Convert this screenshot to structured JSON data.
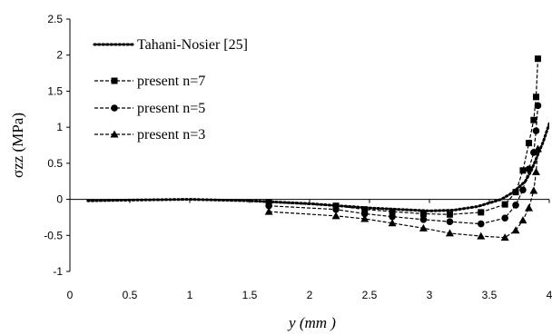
{
  "chart_data": {
    "type": "line",
    "xlabel": "y (mm )",
    "ylabel": "σzz (MPa)",
    "xlim": [
      0,
      4
    ],
    "ylim": [
      -1,
      2.5
    ],
    "xticks": [
      "0",
      "0.5",
      "1",
      "1.5",
      "2",
      "2.5",
      "3",
      "3.5",
      "4"
    ],
    "yticks": [
      "-1",
      "-0.5",
      "0",
      "0.5",
      "1",
      "1.5",
      "2",
      "2.5"
    ],
    "grid": false,
    "legend_position": "top-left",
    "series": [
      {
        "name": "Tahani-Nosier [25]",
        "style": "dotted",
        "marker": "none",
        "color": "#000000",
        "x": [
          0.15,
          0.5,
          1.0,
          1.5,
          2.0,
          2.5,
          3.0,
          3.2,
          3.4,
          3.6,
          3.7,
          3.8,
          3.85,
          3.9,
          3.95,
          4.0
        ],
        "y": [
          -0.02,
          -0.01,
          0.0,
          -0.02,
          -0.06,
          -0.12,
          -0.16,
          -0.15,
          -0.1,
          0.0,
          0.1,
          0.25,
          0.4,
          0.6,
          0.8,
          1.05
        ]
      },
      {
        "name": "present n=7",
        "style": "dashed",
        "marker": "square",
        "color": "#000000",
        "x": [
          1.66,
          2.22,
          2.46,
          2.69,
          2.95,
          3.17,
          3.43,
          3.63,
          3.72,
          3.78,
          3.83,
          3.87,
          3.89,
          3.905
        ],
        "y": [
          -0.04,
          -0.09,
          -0.14,
          -0.17,
          -0.2,
          -0.21,
          -0.18,
          -0.07,
          0.1,
          0.4,
          0.78,
          1.1,
          1.42,
          1.95
        ]
      },
      {
        "name": "present n=5",
        "style": "dashed",
        "marker": "circle",
        "color": "#000000",
        "x": [
          1.66,
          2.22,
          2.46,
          2.69,
          2.95,
          3.17,
          3.43,
          3.63,
          3.72,
          3.78,
          3.83,
          3.87,
          3.89,
          3.905
        ],
        "y": [
          -0.09,
          -0.14,
          -0.2,
          -0.24,
          -0.28,
          -0.31,
          -0.34,
          -0.26,
          -0.08,
          0.13,
          0.42,
          0.65,
          0.95,
          1.3
        ]
      },
      {
        "name": "present n=3",
        "style": "dashed",
        "marker": "triangle",
        "color": "#000000",
        "x": [
          1.66,
          2.22,
          2.46,
          2.69,
          2.95,
          3.17,
          3.43,
          3.63,
          3.72,
          3.78,
          3.83,
          3.87,
          3.89,
          3.905
        ],
        "y": [
          -0.17,
          -0.23,
          -0.27,
          -0.33,
          -0.4,
          -0.47,
          -0.51,
          -0.53,
          -0.43,
          -0.29,
          -0.12,
          0.12,
          0.38,
          0.7
        ]
      }
    ]
  }
}
